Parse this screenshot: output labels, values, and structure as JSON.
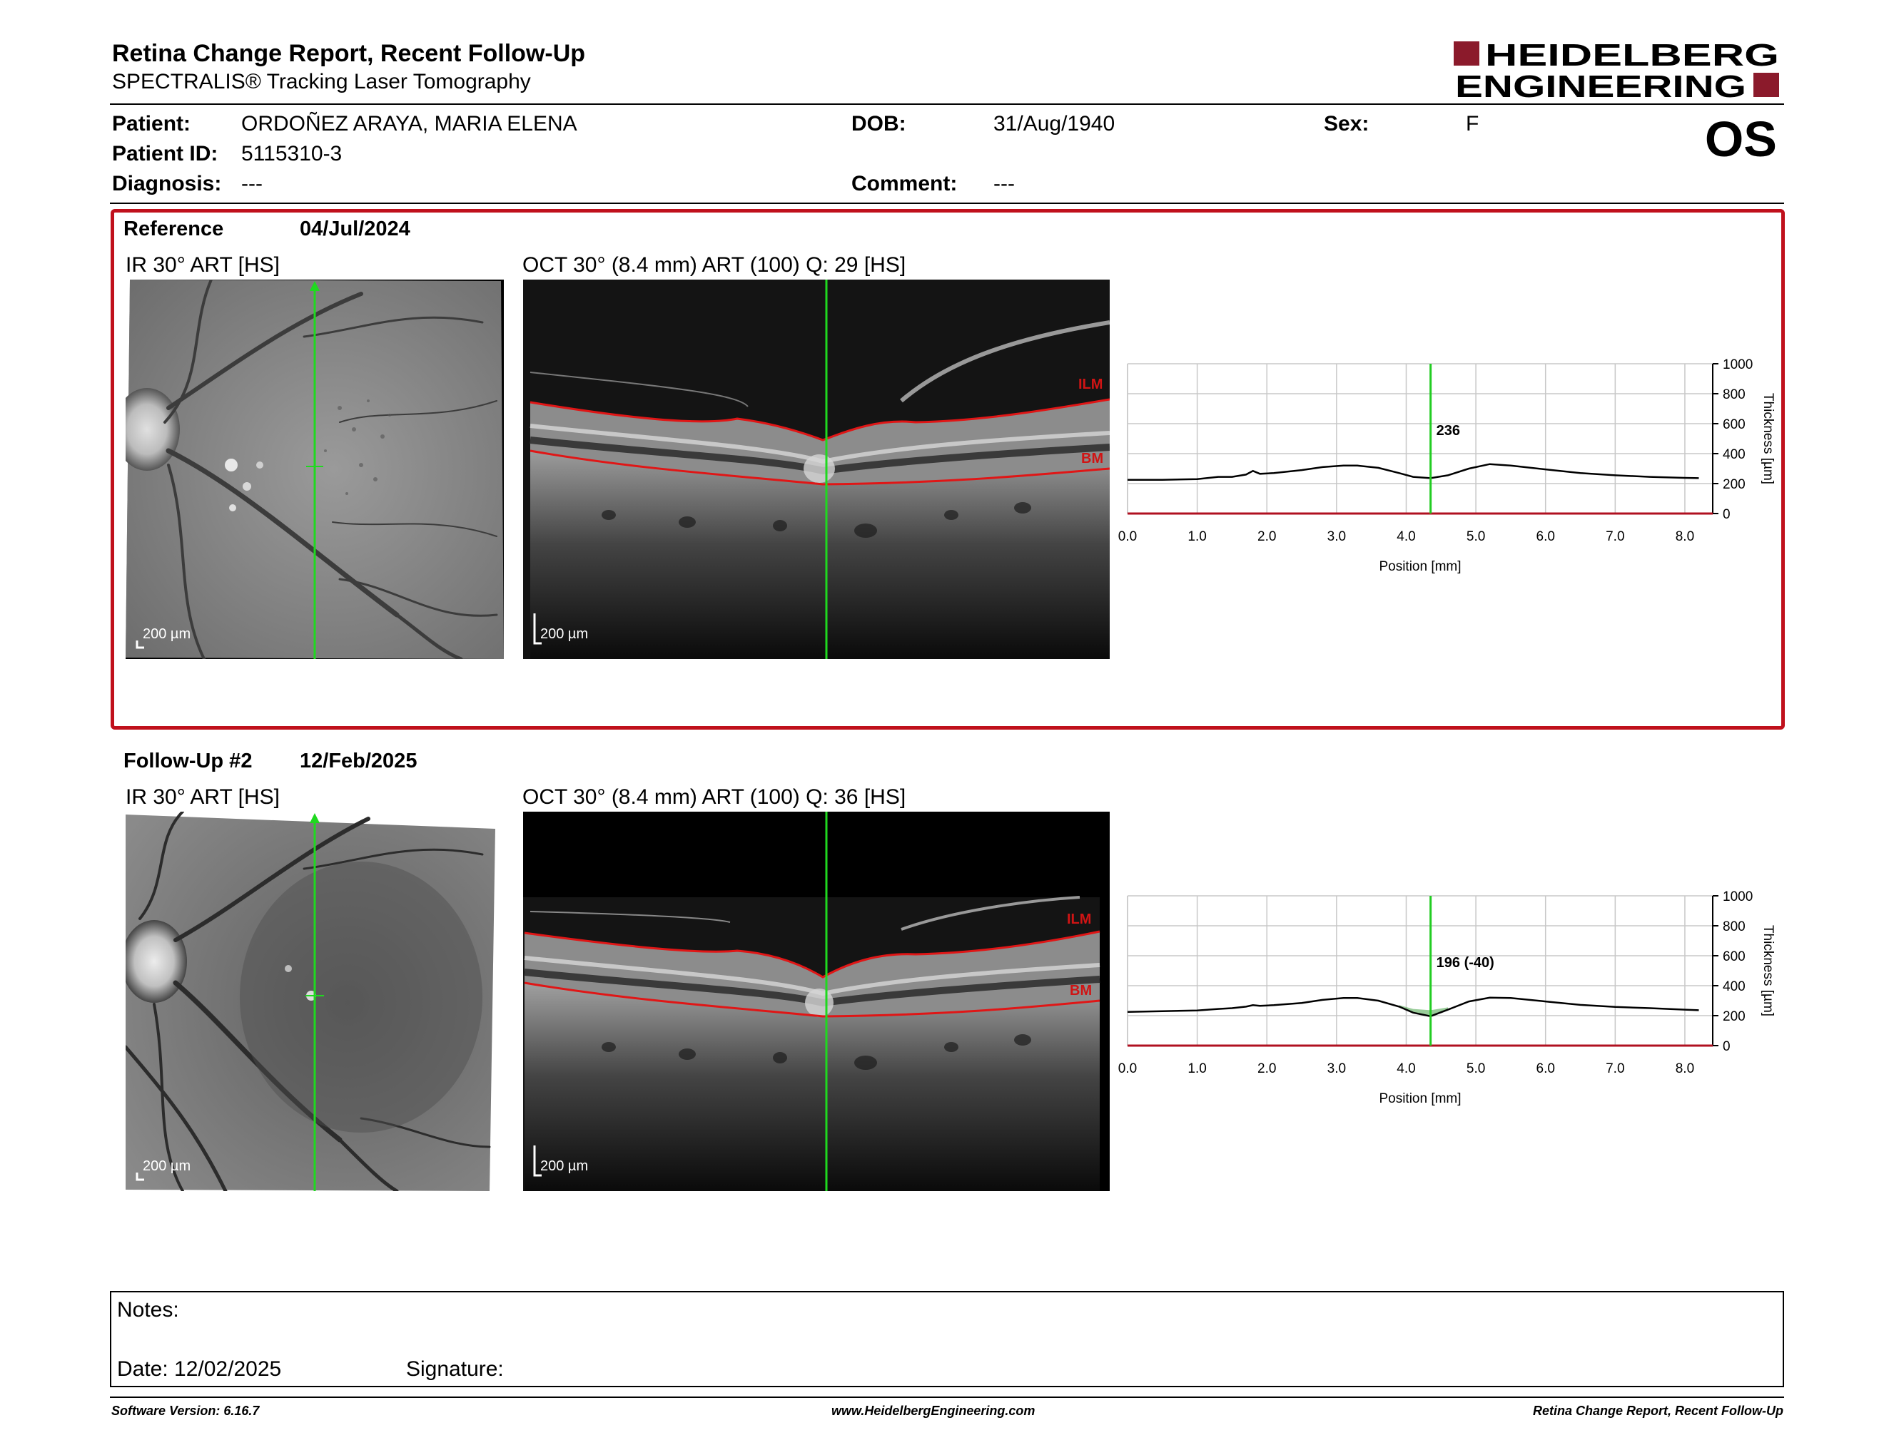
{
  "report": {
    "title": "Retina Change Report, Recent Follow-Up",
    "subtitle": "SPECTRALIS® Tracking Laser Tomography",
    "logo_line1": "HEIDELBERG",
    "logo_line2": "ENGINEERING",
    "eye": "OS"
  },
  "patient": {
    "patient_label": "Patient:",
    "patient_value": "ORDOÑEZ ARAYA, MARIA ELENA",
    "id_label": "Patient ID:",
    "id_value": "5115310-3",
    "diagnosis_label": "Diagnosis:",
    "diagnosis_value": "---",
    "dob_label": "DOB:",
    "dob_value": "31/Aug/1940",
    "comment_label": "Comment:",
    "comment_value": "---",
    "sex_label": "Sex:",
    "sex_value": "F"
  },
  "reference": {
    "label": "Reference",
    "date": "04/Jul/2024",
    "ir_label": "IR 30° ART [HS]",
    "oct_label": "OCT 30° (8.4 mm) ART (100) Q: 29 [HS]",
    "ir_scale": "200 µm",
    "oct_scale": "200 µm",
    "ilm": "ILM",
    "bm": "BM"
  },
  "followup": {
    "label": "Follow-Up #2",
    "date": "12/Feb/2025",
    "ir_label": "IR 30° ART [HS]",
    "oct_label": "OCT 30° (8.4 mm) ART (100) Q: 36 [HS]",
    "ir_scale": "200 µm",
    "oct_scale": "200 µm",
    "ilm": "ILM",
    "bm": "BM"
  },
  "chart_data": [
    {
      "type": "line",
      "xlabel": "Position [mm]",
      "ylabel": "Thickness [µm]",
      "xlim": [
        0.0,
        8.4
      ],
      "ylim": [
        0,
        1000
      ],
      "x_ticks": [
        "0.0",
        "1.0",
        "2.0",
        "3.0",
        "4.0",
        "5.0",
        "6.0",
        "7.0",
        "8.0"
      ],
      "y_ticks": [
        "0",
        "200",
        "400",
        "600",
        "800",
        "1000"
      ],
      "grid": true,
      "cursor_x": 4.35,
      "cursor_label": "236",
      "series": [
        {
          "x": [
            0.0,
            0.5,
            1.0,
            1.3,
            1.5,
            1.7,
            1.8,
            1.9,
            2.1,
            2.5,
            2.8,
            3.1,
            3.3,
            3.6,
            3.9,
            4.1,
            4.35,
            4.6,
            4.9,
            5.2,
            5.5,
            6.0,
            6.5,
            7.0,
            7.5,
            8.0,
            8.2
          ],
          "values": [
            225,
            225,
            230,
            245,
            245,
            260,
            285,
            265,
            270,
            290,
            310,
            320,
            320,
            305,
            270,
            245,
            236,
            255,
            300,
            330,
            320,
            295,
            270,
            255,
            245,
            238,
            236
          ]
        }
      ]
    },
    {
      "type": "line",
      "xlabel": "Position [mm]",
      "ylabel": "Thickness [µm]",
      "xlim": [
        0.0,
        8.4
      ],
      "ylim": [
        0,
        1000
      ],
      "x_ticks": [
        "0.0",
        "1.0",
        "2.0",
        "3.0",
        "4.0",
        "5.0",
        "6.0",
        "7.0",
        "8.0"
      ],
      "y_ticks": [
        "0",
        "200",
        "400",
        "600",
        "800",
        "1000"
      ],
      "grid": true,
      "cursor_x": 4.35,
      "cursor_label": "196 (-40)",
      "series": [
        {
          "x": [
            0.0,
            0.5,
            1.0,
            1.3,
            1.5,
            1.7,
            1.8,
            1.9,
            2.1,
            2.5,
            2.8,
            3.1,
            3.3,
            3.6,
            3.9,
            4.1,
            4.35,
            4.6,
            4.9,
            5.2,
            5.5,
            6.0,
            6.5,
            7.0,
            7.5,
            8.0,
            8.2
          ],
          "values": [
            225,
            230,
            235,
            245,
            250,
            260,
            270,
            265,
            270,
            285,
            305,
            318,
            318,
            300,
            260,
            220,
            196,
            240,
            295,
            320,
            318,
            295,
            272,
            258,
            250,
            240,
            236
          ]
        }
      ]
    }
  ],
  "notes": {
    "notes_label": "Notes:",
    "date_label": "Date: 12/02/2025",
    "signature_label": "Signature:"
  },
  "footer": {
    "software": "Software Version: 6.16.7",
    "website": "www.HeidelbergEngineering.com",
    "report_name": "Retina Change Report, Recent Follow-Up"
  }
}
